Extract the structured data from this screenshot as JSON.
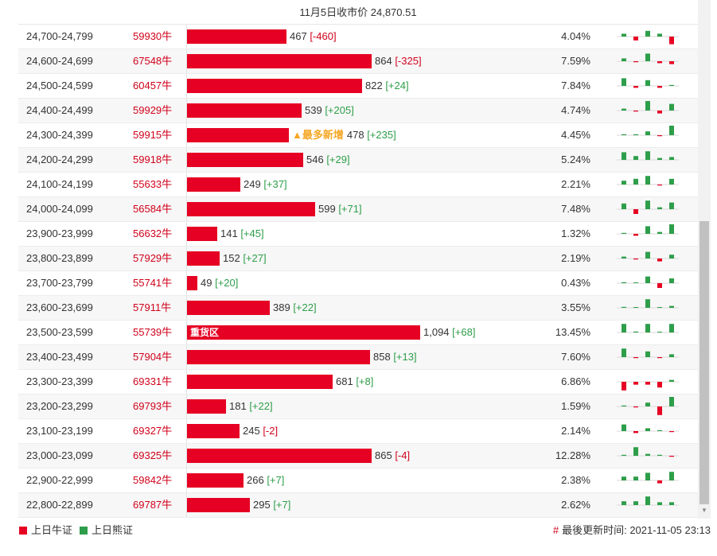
{
  "header": {
    "title": "11月5日收市价 24,870.51"
  },
  "chart_data": {
    "type": "bar",
    "title": "11月5日收市价 24,870.51",
    "categories": [
      "24,700-24,799",
      "24,600-24,699",
      "24,500-24,599",
      "24,400-24,499",
      "24,300-24,399",
      "24,200-24,299",
      "24,100-24,199",
      "24,000-24,099",
      "23,900-23,999",
      "23,800-23,899",
      "23,700-23,799",
      "23,600-23,699",
      "23,500-23,599",
      "23,400-23,499",
      "23,300-23,399",
      "23,200-23,299",
      "23,100-23,199",
      "23,000-23,099",
      "22,900-22,999",
      "22,800-22,899"
    ],
    "codes": [
      "59930牛",
      "67548牛",
      "60457牛",
      "59929牛",
      "59915牛",
      "59918牛",
      "55633牛",
      "56584牛",
      "56632牛",
      "57929牛",
      "55741牛",
      "57911牛",
      "55739牛",
      "57904牛",
      "69331牛",
      "69793牛",
      "69327牛",
      "69325牛",
      "59842牛",
      "69787牛"
    ],
    "values": [
      467,
      864,
      822,
      539,
      478,
      546,
      249,
      599,
      141,
      152,
      49,
      389,
      1094,
      858,
      681,
      181,
      245,
      865,
      266,
      295
    ],
    "value_labels": [
      "467",
      "864",
      "822",
      "539",
      "478",
      "546",
      "249",
      "599",
      "141",
      "152",
      "49",
      "389",
      "1,094",
      "858",
      "681",
      "181",
      "245",
      "865",
      "266",
      "295"
    ],
    "changes": [
      "[-460]",
      "[-325]",
      "[+24]",
      "[+205]",
      "[+235]",
      "[+29]",
      "[+37]",
      "[+71]",
      "[+45]",
      "[+27]",
      "[+20]",
      "[+22]",
      "[+68]",
      "[+13]",
      "[+8]",
      "[+22]",
      "[-2]",
      "[-4]",
      "[+7]",
      "[+7]"
    ],
    "change_values": [
      -460,
      -325,
      24,
      205,
      235,
      29,
      37,
      71,
      45,
      27,
      20,
      22,
      68,
      13,
      8,
      22,
      -2,
      -4,
      7,
      7
    ],
    "percents": [
      "4.04%",
      "7.59%",
      "7.84%",
      "4.74%",
      "4.45%",
      "5.24%",
      "2.21%",
      "7.48%",
      "1.32%",
      "2.19%",
      "0.43%",
      "3.55%",
      "13.45%",
      "7.60%",
      "6.86%",
      "1.59%",
      "2.14%",
      "12.28%",
      "2.38%",
      "2.62%"
    ],
    "bar_tags": {
      "12": "重货区"
    },
    "markers": {
      "4": "▲最多新增"
    },
    "sparklines": [
      [
        3,
        -4,
        6,
        3,
        -8
      ],
      [
        3,
        -1,
        8,
        -2,
        -3
      ],
      [
        8,
        -2,
        6,
        -2,
        1
      ],
      [
        2,
        -1,
        10,
        -3,
        7
      ],
      [
        1,
        1,
        4,
        -1,
        10
      ],
      [
        8,
        4,
        9,
        2,
        3
      ],
      [
        4,
        6,
        9,
        -1,
        6
      ],
      [
        6,
        -5,
        9,
        2,
        7
      ],
      [
        1,
        -2,
        8,
        2,
        10
      ],
      [
        2,
        -1,
        7,
        -3,
        4
      ],
      [
        1,
        0,
        7,
        -5,
        5
      ],
      [
        1,
        0,
        9,
        0,
        2
      ],
      [
        9,
        1,
        9,
        0,
        9
      ],
      [
        9,
        -1,
        6,
        -1,
        3
      ],
      [
        -9,
        -3,
        -3,
        -6,
        2
      ],
      [
        1,
        -1,
        4,
        -9,
        10
      ],
      [
        7,
        -2,
        3,
        1,
        -1
      ],
      [
        1,
        9,
        2,
        1,
        -1
      ],
      [
        4,
        4,
        8,
        -3,
        9
      ],
      [
        4,
        4,
        9,
        3,
        3
      ]
    ],
    "colors": {
      "bull": "#e60023",
      "bear": "#2e9e4a"
    },
    "legend": [
      "上日牛证",
      "上日熊证"
    ]
  },
  "legend": {
    "bull": "上日牛证",
    "bear": "上日熊证"
  },
  "footer": {
    "hash": "#",
    "updated": "最後更新时间: 2021-11-05 23:13"
  }
}
